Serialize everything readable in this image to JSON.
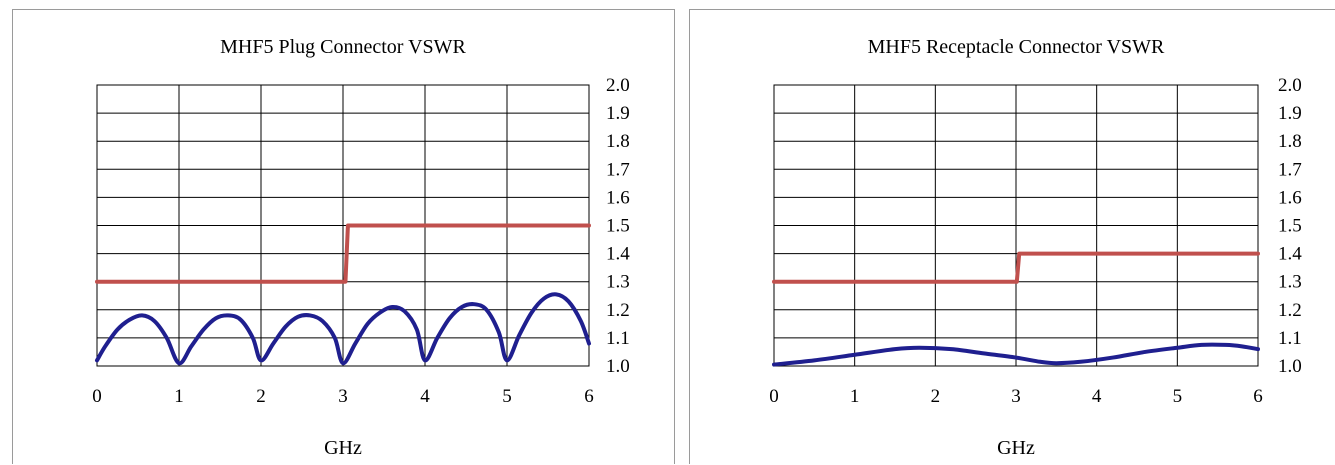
{
  "chart_data": [
    {
      "type": "line",
      "title": "MHF5 Plug Connector VSWR",
      "xlabel": "GHz",
      "ylabel": "",
      "xlim": [
        0,
        6
      ],
      "ylim": [
        1.0,
        2.0
      ],
      "x_ticks": [
        "0",
        "1",
        "2",
        "3",
        "4",
        "5",
        "6"
      ],
      "y_ticks": [
        "2.0",
        "1.9",
        "1.8",
        "1.7",
        "1.6",
        "1.5",
        "1.4",
        "1.3",
        "1.2",
        "1.1",
        "1.0"
      ],
      "y_tick_values": [
        2.0,
        1.9,
        1.8,
        1.7,
        1.6,
        1.5,
        1.4,
        1.3,
        1.2,
        1.1,
        1.0
      ],
      "grid": true,
      "series": [
        {
          "color": "#c0504d",
          "x": [
            0,
            3.0,
            3.03,
            3.06,
            6
          ],
          "y": [
            1.3,
            1.3,
            1.3,
            1.5,
            1.5
          ]
        },
        {
          "color": "#1f1f8f",
          "x": [
            0,
            0.1,
            0.25,
            0.4,
            0.55,
            0.7,
            0.85,
            1.0,
            1.15,
            1.3,
            1.45,
            1.6,
            1.75,
            1.9,
            2.0,
            2.15,
            2.3,
            2.45,
            2.6,
            2.75,
            2.9,
            3.0,
            3.15,
            3.3,
            3.45,
            3.6,
            3.75,
            3.9,
            4.0,
            4.15,
            4.3,
            4.45,
            4.6,
            4.75,
            4.9,
            5.0,
            5.15,
            5.3,
            5.45,
            5.6,
            5.75,
            5.9,
            6.0
          ],
          "y": [
            1.02,
            1.07,
            1.13,
            1.165,
            1.18,
            1.16,
            1.1,
            1.01,
            1.07,
            1.13,
            1.17,
            1.18,
            1.165,
            1.1,
            1.02,
            1.08,
            1.14,
            1.175,
            1.18,
            1.16,
            1.1,
            1.01,
            1.08,
            1.15,
            1.19,
            1.21,
            1.195,
            1.13,
            1.02,
            1.1,
            1.17,
            1.21,
            1.22,
            1.2,
            1.12,
            1.02,
            1.11,
            1.19,
            1.24,
            1.255,
            1.23,
            1.16,
            1.08
          ]
        }
      ]
    },
    {
      "type": "line",
      "title": "MHF5 Receptacle Connector VSWR",
      "xlabel": "GHz",
      "ylabel": "",
      "xlim": [
        0,
        6
      ],
      "ylim": [
        1.0,
        2.0
      ],
      "x_ticks": [
        "0",
        "1",
        "2",
        "3",
        "4",
        "5",
        "6"
      ],
      "y_ticks": [
        "2.0",
        "1.9",
        "1.8",
        "1.7",
        "1.6",
        "1.5",
        "1.4",
        "1.3",
        "1.2",
        "1.1",
        "1.0"
      ],
      "y_tick_values": [
        2.0,
        1.9,
        1.8,
        1.7,
        1.6,
        1.5,
        1.4,
        1.3,
        1.2,
        1.1,
        1.0
      ],
      "grid": true,
      "series": [
        {
          "color": "#c0504d",
          "x": [
            0,
            2.98,
            3.01,
            3.04,
            6
          ],
          "y": [
            1.3,
            1.3,
            1.3,
            1.4,
            1.4
          ]
        },
        {
          "color": "#1f1f8f",
          "x": [
            0,
            0.5,
            1.0,
            1.5,
            1.8,
            2.2,
            2.6,
            3.0,
            3.3,
            3.5,
            3.8,
            4.2,
            4.6,
            5.0,
            5.3,
            5.6,
            5.8,
            6.0
          ],
          "y": [
            1.005,
            1.02,
            1.04,
            1.06,
            1.065,
            1.06,
            1.045,
            1.03,
            1.015,
            1.01,
            1.015,
            1.03,
            1.05,
            1.065,
            1.075,
            1.075,
            1.07,
            1.06
          ]
        }
      ]
    }
  ]
}
